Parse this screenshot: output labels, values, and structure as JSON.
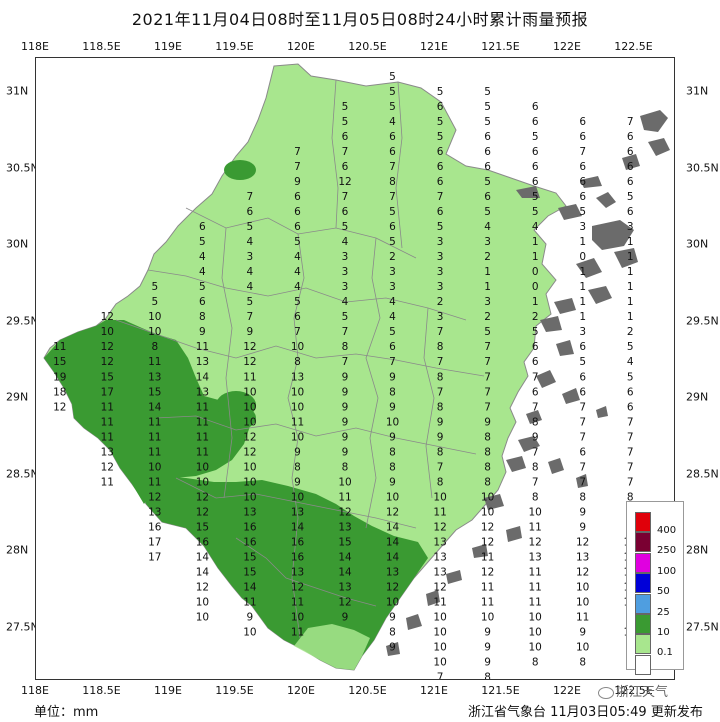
{
  "title": "2021年11月04日08时至11月05日08时24小时累计雨量预报",
  "axes": {
    "lon_labels": [
      "118E",
      "118.5E",
      "119E",
      "119.5E",
      "120E",
      "120.5E",
      "121E",
      "121.5E",
      "122E",
      "122.5E"
    ],
    "lat_labels": [
      "31N",
      "30.5N",
      "30N",
      "29.5N",
      "29N",
      "28.5N",
      "28N",
      "27.5N"
    ]
  },
  "legend": {
    "items": [
      {
        "label": "400",
        "color": "#e0000a"
      },
      {
        "label": "250",
        "color": "#7a0032"
      },
      {
        "label": "100",
        "color": "#e000e0"
      },
      {
        "label": "50",
        "color": "#0000d8"
      },
      {
        "label": "25",
        "color": "#4f9ee0"
      },
      {
        "label": "10",
        "color": "#3a9a32"
      },
      {
        "label": "0.1",
        "color": "#a8e68e"
      },
      {
        "label": "",
        "color": "#ffffff"
      }
    ]
  },
  "colors": {
    "light_green": "#a8e68e",
    "dark_green": "#3a9a32",
    "sea_islands": "#6b6b6b",
    "border": "#8a8a8a"
  },
  "footer": {
    "unit": "单位：mm",
    "source": "浙江省气象台  11月03日05:49  更新发布",
    "watermark": "浙江天气"
  },
  "grid_values": {
    "rows": [
      {
        "lat": 31.2,
        "values": [
          "",
          "",
          "",
          "",
          "",
          "",
          "",
          "5",
          "",
          "",
          "",
          "",
          "",
          "",
          "",
          "",
          "",
          "",
          "",
          "",
          ""
        ]
      },
      {
        "lat": 31.1,
        "values": [
          "",
          "",
          "",
          "",
          "",
          "",
          "",
          "5",
          "5",
          "5",
          "",
          "",
          "",
          "",
          "6",
          "",
          "",
          "",
          "",
          "",
          ""
        ]
      },
      {
        "lat": 31.0,
        "values": [
          "",
          "",
          "",
          "",
          "",
          "",
          "5",
          "5",
          "6",
          "5",
          "6",
          "",
          "",
          "",
          "7",
          "",
          "",
          "",
          "",
          "",
          ""
        ]
      },
      {
        "lat": 30.9,
        "values": [
          "",
          "",
          "",
          "",
          "",
          "",
          "5",
          "4",
          "5",
          "5",
          "6",
          "6",
          "7",
          "8",
          "8",
          "",
          "",
          "",
          "",
          "",
          ""
        ]
      },
      {
        "lat": 30.8,
        "values": [
          "",
          "",
          "",
          "",
          "",
          "",
          "6",
          "6",
          "5",
          "6",
          "5",
          "6",
          "6",
          "7",
          "8",
          "9",
          "",
          "",
          "",
          "",
          ""
        ]
      },
      {
        "lat": 30.7,
        "values": [
          "",
          "",
          "",
          "",
          "",
          "7",
          "7",
          "6",
          "6",
          "6",
          "6",
          "7",
          "6",
          "7",
          "7",
          "",
          "",
          "",
          "",
          "",
          ""
        ]
      },
      {
        "lat": 30.6,
        "values": [
          "",
          "",
          "",
          "",
          "",
          "7",
          "6",
          "7",
          "6",
          "6",
          "6",
          "6",
          "6",
          "6",
          "",
          "",
          "",
          "",
          "",
          "",
          ""
        ]
      },
      {
        "lat": 30.5,
        "values": [
          "",
          "",
          "",
          "",
          "",
          "9",
          "12",
          "8",
          "6",
          "5",
          "6",
          "6",
          "6",
          "5",
          "",
          "",
          "",
          "",
          "",
          "",
          ""
        ]
      },
      {
        "lat": 30.4,
        "values": [
          "",
          "",
          "",
          "",
          "7",
          "6",
          "7",
          "7",
          "7",
          "6",
          "5",
          "6",
          "5",
          "5",
          "",
          "",
          "",
          "",
          "",
          "",
          ""
        ]
      },
      {
        "lat": 30.3,
        "values": [
          "",
          "",
          "",
          "",
          "6",
          "6",
          "6",
          "5",
          "6",
          "5",
          "5",
          "5",
          "6",
          "5",
          "5",
          "",
          "5",
          "",
          "",
          "",
          ""
        ]
      },
      {
        "lat": 30.2,
        "values": [
          "",
          "",
          "",
          "6",
          "5",
          "6",
          "5",
          "6",
          "5",
          "4",
          "4",
          "3",
          "3",
          "4",
          "5",
          "4",
          "5",
          "",
          "",
          "",
          ""
        ]
      },
      {
        "lat": 30.1,
        "values": [
          "",
          "",
          "",
          "5",
          "4",
          "5",
          "4",
          "5",
          "3",
          "3",
          "1",
          "1",
          "1",
          "3",
          "4",
          "3",
          "3",
          "3",
          "",
          "",
          ""
        ]
      },
      {
        "lat": 30.0,
        "values": [
          "",
          "",
          "",
          "4",
          "3",
          "4",
          "3",
          "2",
          "3",
          "2",
          "1",
          "0",
          "1",
          "1",
          "3",
          "3",
          "3",
          "3",
          "",
          "",
          ""
        ]
      },
      {
        "lat": 29.9,
        "values": [
          "",
          "",
          "",
          "4",
          "4",
          "4",
          "3",
          "3",
          "3",
          "1",
          "0",
          "1",
          "1",
          "0",
          "3",
          "3",
          "3",
          "3",
          "3",
          "",
          ""
        ]
      },
      {
        "lat": 29.8,
        "values": [
          "",
          "",
          "5",
          "5",
          "4",
          "4",
          "3",
          "3",
          "3",
          "1",
          "0",
          "1",
          "1",
          "1",
          "4",
          "4",
          "4",
          "3",
          "3",
          "",
          ""
        ]
      },
      {
        "lat": 29.7,
        "values": [
          "",
          "",
          "5",
          "6",
          "5",
          "5",
          "4",
          "4",
          "2",
          "3",
          "1",
          "1",
          "1",
          "1",
          "2",
          "4",
          "5",
          "4",
          "4",
          "",
          ""
        ]
      },
      {
        "lat": 29.6,
        "values": [
          "",
          "12",
          "10",
          "8",
          "7",
          "6",
          "5",
          "4",
          "3",
          "2",
          "2",
          "1",
          "1",
          "1",
          "3",
          "3",
          "4",
          "5",
          "4",
          "",
          ""
        ]
      },
      {
        "lat": 29.5,
        "values": [
          "",
          "10",
          "10",
          "9",
          "9",
          "7",
          "7",
          "5",
          "7",
          "5",
          "5",
          "3",
          "2",
          "2",
          "1",
          "6",
          "5",
          "5",
          "4",
          "",
          ""
        ]
      },
      {
        "lat": 29.4,
        "values": [
          "11",
          "12",
          "8",
          "11",
          "12",
          "10",
          "8",
          "6",
          "8",
          "7",
          "6",
          "6",
          "5",
          "2",
          "2",
          "2",
          "5",
          "5",
          "5",
          "",
          ""
        ]
      },
      {
        "lat": 29.3,
        "values": [
          "15",
          "12",
          "11",
          "13",
          "12",
          "8",
          "7",
          "7",
          "7",
          "7",
          "6",
          "5",
          "4",
          "4",
          "4",
          "4",
          "5",
          "5",
          "5",
          "",
          ""
        ]
      },
      {
        "lat": 29.2,
        "values": [
          "19",
          "15",
          "13",
          "14",
          "11",
          "13",
          "9",
          "9",
          "8",
          "7",
          "7",
          "6",
          "5",
          "5",
          "4",
          "5",
          "5",
          "4",
          "5",
          "",
          ""
        ]
      },
      {
        "lat": 29.1,
        "values": [
          "18",
          "17",
          "15",
          "13",
          "10",
          "10",
          "9",
          "8",
          "7",
          "7",
          "6",
          "6",
          "6",
          "5",
          "5",
          "5",
          "4",
          "4",
          "4",
          "",
          ""
        ]
      },
      {
        "lat": 29.0,
        "values": [
          "12",
          "11",
          "14",
          "11",
          "10",
          "10",
          "9",
          "9",
          "8",
          "7",
          "7",
          "7",
          "6",
          "6",
          "5",
          "5",
          "5",
          "4",
          "",
          "",
          ""
        ]
      },
      {
        "lat": 28.9,
        "values": [
          "",
          "11",
          "11",
          "11",
          "10",
          "11",
          "9",
          "10",
          "9",
          "9",
          "8",
          "7",
          "7",
          "5",
          "5",
          "5",
          "5",
          "4",
          "",
          "",
          ""
        ]
      },
      {
        "lat": 28.8,
        "values": [
          "",
          "11",
          "11",
          "11",
          "12",
          "10",
          "9",
          "9",
          "9",
          "8",
          "9",
          "7",
          "7",
          "6",
          "5",
          "5",
          "5",
          "4",
          "",
          "",
          ""
        ]
      },
      {
        "lat": 28.7,
        "values": [
          "",
          "13",
          "11",
          "11",
          "12",
          "9",
          "9",
          "8",
          "8",
          "8",
          "7",
          "6",
          "7",
          "6",
          "6",
          "5",
          "5",
          "4",
          "",
          "",
          ""
        ]
      },
      {
        "lat": 28.6,
        "values": [
          "",
          "12",
          "10",
          "10",
          "10",
          "8",
          "8",
          "8",
          "7",
          "8",
          "8",
          "7",
          "7",
          "7",
          "6",
          "5",
          "5",
          "4",
          "",
          "",
          ""
        ]
      },
      {
        "lat": 28.5,
        "values": [
          "",
          "11",
          "11",
          "10",
          "10",
          "9",
          "10",
          "9",
          "8",
          "8",
          "7",
          "7",
          "7",
          "7",
          "7",
          "5",
          "4",
          "4",
          "",
          "",
          ""
        ]
      },
      {
        "lat": 28.4,
        "values": [
          "",
          "",
          "12",
          "12",
          "10",
          "10",
          "11",
          "10",
          "10",
          "10",
          "8",
          "8",
          "8",
          "7",
          "7",
          "6",
          "5",
          "",
          "",
          "",
          ""
        ]
      },
      {
        "lat": 28.3,
        "values": [
          "",
          "",
          "13",
          "12",
          "13",
          "13",
          "12",
          "12",
          "11",
          "10",
          "10",
          "9",
          "8",
          "8",
          "8",
          "6",
          "5",
          "",
          "",
          "",
          ""
        ]
      },
      {
        "lat": 28.2,
        "values": [
          "",
          "",
          "16",
          "15",
          "16",
          "14",
          "13",
          "14",
          "12",
          "12",
          "11",
          "9",
          "9",
          "8",
          "7",
          "7",
          "",
          "",
          "",
          "",
          ""
        ]
      },
      {
        "lat": 28.1,
        "values": [
          "",
          "",
          "17",
          "16",
          "16",
          "16",
          "15",
          "14",
          "13",
          "12",
          "12",
          "12",
          "10",
          "9",
          "9",
          "9",
          "",
          "",
          "",
          "",
          ""
        ]
      },
      {
        "lat": 28.0,
        "values": [
          "",
          "",
          "17",
          "14",
          "15",
          "16",
          "14",
          "14",
          "13",
          "11",
          "13",
          "13",
          "11",
          "8",
          "9",
          "",
          "",
          "",
          "",
          "",
          ""
        ]
      },
      {
        "lat": 27.9,
        "values": [
          "",
          "",
          "",
          "14",
          "15",
          "13",
          "14",
          "13",
          "13",
          "12",
          "11",
          "12",
          "10",
          "9",
          "9",
          "",
          "",
          "",
          "",
          "",
          ""
        ]
      },
      {
        "lat": 27.8,
        "values": [
          "",
          "",
          "",
          "12",
          "14",
          "12",
          "13",
          "12",
          "12",
          "11",
          "11",
          "10",
          "10",
          "",
          "",
          "",
          "",
          "",
          "",
          "",
          ""
        ]
      },
      {
        "lat": 27.7,
        "values": [
          "",
          "",
          "",
          "10",
          "11",
          "11",
          "12",
          "10",
          "11",
          "11",
          "11",
          "10",
          "10",
          "",
          "",
          "",
          "",
          "",
          "",
          "",
          ""
        ]
      },
      {
        "lat": 27.6,
        "values": [
          "",
          "",
          "",
          "10",
          "9",
          "10",
          "9",
          "9",
          "10",
          "10",
          "10",
          "11",
          "9",
          "",
          "",
          "",
          "",
          "",
          "",
          "",
          ""
        ]
      },
      {
        "lat": 27.5,
        "values": [
          "",
          "",
          "",
          "",
          "10",
          "11",
          "",
          "8",
          "10",
          "9",
          "10",
          "9",
          "10",
          "10",
          "",
          "",
          "",
          "",
          "",
          "",
          ""
        ]
      },
      {
        "lat": 27.4,
        "values": [
          "",
          "",
          "",
          "",
          "",
          "",
          "",
          "9",
          "10",
          "9",
          "10",
          "10",
          "",
          "",
          "",
          "",
          "",
          "",
          "",
          "",
          ""
        ]
      },
      {
        "lat": 27.3,
        "values": [
          "",
          "",
          "",
          "",
          "",
          "",
          "",
          "",
          "10",
          "9",
          "8",
          "8",
          "",
          "",
          "",
          "",
          "",
          "",
          "",
          "",
          ""
        ]
      },
      {
        "lat": 27.2,
        "values": [
          "",
          "",
          "",
          "",
          "",
          "",
          "",
          "",
          "7",
          "8",
          "",
          "",
          "",
          "",
          "",
          "",
          "",
          "",
          "",
          "",
          ""
        ]
      }
    ],
    "lon_start": 118.1,
    "lon_step": 0.2
  }
}
